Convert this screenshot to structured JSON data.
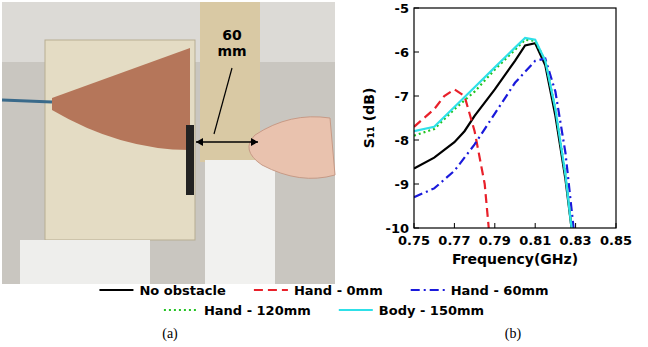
{
  "chart_data": {
    "type": "line",
    "x_label": "Frequency(GHz)",
    "y_label": "S₁₁ (dB)",
    "xlim": [
      0.75,
      0.85
    ],
    "xticks": [
      0.75,
      0.77,
      0.79,
      0.81,
      0.83,
      0.85
    ],
    "ylim": [
      -10,
      -5
    ],
    "yticks": [
      -10,
      -9,
      -8,
      -7,
      -6,
      -5
    ],
    "grid": false,
    "legend": "bottom",
    "series": [
      {
        "name": "No obstacle",
        "color": "#000000",
        "line_style": "solid",
        "x": [
          0.75,
          0.76,
          0.77,
          0.775,
          0.78,
          0.79,
          0.8,
          0.805,
          0.81,
          0.815,
          0.82,
          0.825,
          0.828
        ],
        "values": [
          -8.65,
          -8.4,
          -8.05,
          -7.8,
          -7.45,
          -6.85,
          -6.2,
          -5.85,
          -5.8,
          -6.3,
          -7.45,
          -8.9,
          -10
        ]
      },
      {
        "name": "Hand - 0mm",
        "color": "#e8202a",
        "line_style": "dashed",
        "x": [
          0.75,
          0.755,
          0.76,
          0.765,
          0.77,
          0.775,
          0.78,
          0.785,
          0.787
        ],
        "values": [
          -7.7,
          -7.5,
          -7.3,
          -7.0,
          -6.85,
          -7.0,
          -7.8,
          -9.0,
          -10
        ]
      },
      {
        "name": "Hand - 60mm",
        "color": "#1a1adb",
        "line_style": "dashdot",
        "x": [
          0.75,
          0.76,
          0.77,
          0.78,
          0.79,
          0.8,
          0.81,
          0.815,
          0.82,
          0.825,
          0.829
        ],
        "values": [
          -9.3,
          -9.1,
          -8.7,
          -8.1,
          -7.4,
          -6.7,
          -6.2,
          -6.15,
          -6.9,
          -8.3,
          -10
        ]
      },
      {
        "name": "Hand - 120mm",
        "color": "#22c322",
        "line_style": "dotted",
        "x": [
          0.75,
          0.76,
          0.77,
          0.78,
          0.79,
          0.8,
          0.805,
          0.81,
          0.815,
          0.82,
          0.825,
          0.828
        ],
        "values": [
          -7.9,
          -7.75,
          -7.3,
          -6.9,
          -6.4,
          -5.95,
          -5.72,
          -5.75,
          -6.2,
          -7.3,
          -8.8,
          -10
        ]
      },
      {
        "name": "Body - 150mm",
        "color": "#2ee0e8",
        "line_style": "solid",
        "x": [
          0.75,
          0.76,
          0.77,
          0.78,
          0.79,
          0.8,
          0.805,
          0.81,
          0.815,
          0.82,
          0.825,
          0.828
        ],
        "values": [
          -7.8,
          -7.7,
          -7.25,
          -6.8,
          -6.35,
          -5.9,
          -5.68,
          -5.72,
          -6.2,
          -7.3,
          -8.8,
          -10
        ]
      }
    ]
  },
  "photo": {
    "annotation": "60 mm"
  },
  "panel_labels": [
    "(a)",
    "(b)"
  ]
}
